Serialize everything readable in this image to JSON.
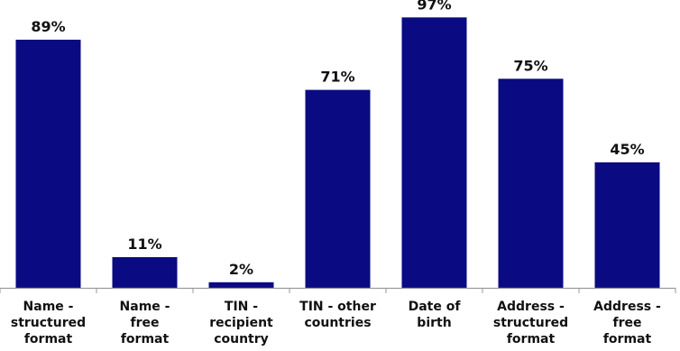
{
  "chart_data": {
    "type": "bar",
    "categories": [
      [
        "Name -",
        "structured",
        "format"
      ],
      [
        "Name -",
        "free",
        "format"
      ],
      [
        "TIN  -",
        "recipient",
        "country"
      ],
      [
        "TIN - other",
        "countries"
      ],
      [
        "Date of",
        "birth"
      ],
      [
        "Address -",
        "structured",
        "format"
      ],
      [
        "Address -",
        "free",
        "format"
      ]
    ],
    "values": [
      89,
      11,
      2,
      71,
      97,
      75,
      45
    ],
    "value_labels": [
      "89%",
      "11%",
      "2%",
      "71%",
      "97%",
      "75%",
      "45%"
    ],
    "unit": "%",
    "ylim": [
      0,
      100
    ],
    "grid": false,
    "legend": "none",
    "colors": {
      "bar": "#0a0a82",
      "axis": "#9a9a9a",
      "text": "#111111"
    }
  }
}
